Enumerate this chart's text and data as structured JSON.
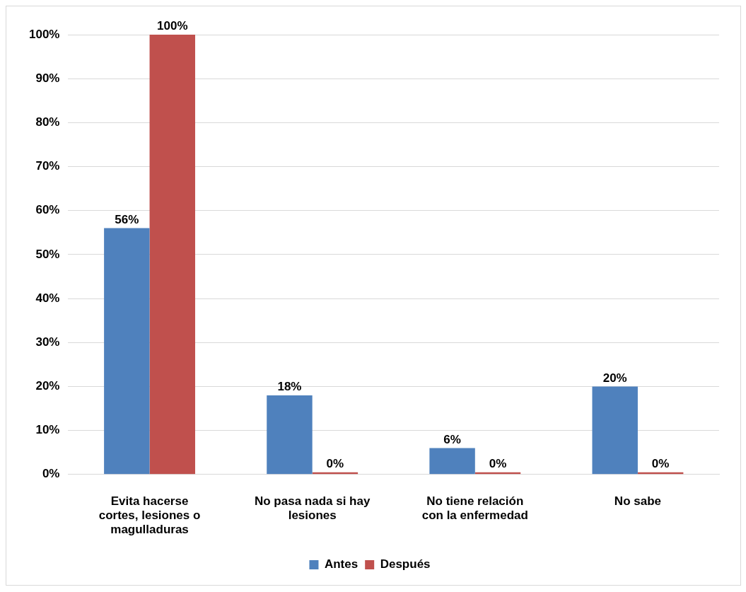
{
  "chart_data": {
    "type": "bar",
    "categories": [
      "Evita hacerse cortes, lesiones o magulladuras",
      "No pasa nada si hay lesiones",
      "No tiene relación con la enfermedad",
      "No sabe"
    ],
    "series": [
      {
        "name": "Antes",
        "color": "#4f81bd",
        "values": [
          56,
          18,
          6,
          20
        ],
        "value_labels": [
          "56%",
          "18%",
          "6%",
          "20%"
        ]
      },
      {
        "name": "Después",
        "color": "#c0504d",
        "values": [
          100,
          0,
          0,
          0
        ],
        "value_labels": [
          "100%",
          "0%",
          "0%",
          "0%"
        ]
      }
    ],
    "ylim": [
      0,
      100
    ],
    "yticks": [
      {
        "value": 0,
        "label": "0%"
      },
      {
        "value": 10,
        "label": "10%"
      },
      {
        "value": 20,
        "label": "20%"
      },
      {
        "value": 30,
        "label": "30%"
      },
      {
        "value": 40,
        "label": "40%"
      },
      {
        "value": 50,
        "label": "50%"
      },
      {
        "value": 60,
        "label": "60%"
      },
      {
        "value": 70,
        "label": "70%"
      },
      {
        "value": 80,
        "label": "80%"
      },
      {
        "value": 90,
        "label": "90%"
      },
      {
        "value": 100,
        "label": "100%"
      }
    ],
    "grid": "y",
    "legend": "bottom"
  }
}
